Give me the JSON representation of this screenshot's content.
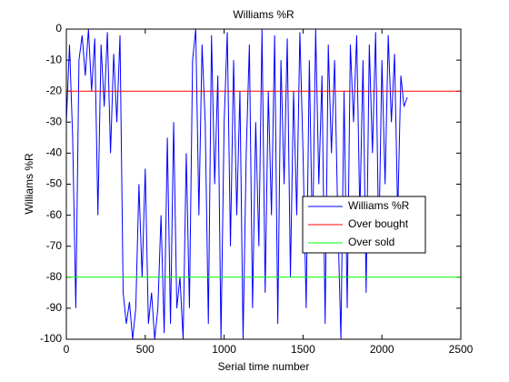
{
  "chart_data": {
    "type": "line",
    "title": "Williams %R",
    "xlabel": "Serial time number",
    "ylabel": "Williams %R",
    "xlim": [
      0,
      2500
    ],
    "xticks": [
      0,
      500,
      1000,
      1500,
      2000,
      2500
    ],
    "ylim": [
      -100,
      0
    ],
    "yticks": [
      -100,
      -90,
      -80,
      -70,
      -60,
      -50,
      -40,
      -30,
      -20,
      -10,
      0
    ],
    "legend": "east",
    "series": [
      {
        "name": "Williams %R",
        "color": "#0000ff",
        "x": [
          0,
          20,
          40,
          60,
          80,
          100,
          120,
          140,
          160,
          180,
          200,
          220,
          240,
          260,
          280,
          300,
          320,
          340,
          360,
          380,
          400,
          420,
          440,
          460,
          480,
          500,
          520,
          540,
          560,
          580,
          600,
          620,
          640,
          660,
          680,
          700,
          720,
          740,
          760,
          780,
          800,
          820,
          840,
          860,
          880,
          900,
          920,
          940,
          960,
          980,
          1000,
          1020,
          1040,
          1060,
          1080,
          1100,
          1120,
          1140,
          1160,
          1180,
          1200,
          1220,
          1240,
          1260,
          1280,
          1300,
          1320,
          1340,
          1360,
          1380,
          1400,
          1420,
          1440,
          1460,
          1480,
          1500,
          1520,
          1540,
          1560,
          1580,
          1600,
          1620,
          1640,
          1660,
          1680,
          1700,
          1720,
          1740,
          1760,
          1780,
          1800,
          1820,
          1840,
          1860,
          1880,
          1900,
          1920,
          1940,
          1960,
          1980,
          2000,
          2020,
          2040,
          2060,
          2080,
          2100,
          2120,
          2140,
          2160
        ],
        "values": [
          -30,
          -5,
          -35,
          -90,
          -10,
          -2,
          -15,
          0,
          -20,
          -3,
          -60,
          -5,
          -25,
          -1,
          -40,
          -8,
          -30,
          -2,
          -85,
          -95,
          -88,
          -100,
          -90,
          -50,
          -80,
          -45,
          -95,
          -85,
          -100,
          -90,
          -60,
          -98,
          -35,
          -95,
          -30,
          -90,
          -80,
          -100,
          -40,
          -90,
          -10,
          0,
          -60,
          -5,
          -30,
          -95,
          -2,
          -50,
          -15,
          -100,
          -30,
          -1,
          -70,
          -10,
          -60,
          -20,
          -100,
          -40,
          -5,
          -90,
          -30,
          -70,
          0,
          -85,
          -20,
          -60,
          -2,
          -95,
          -10,
          -50,
          -3,
          -80,
          -20,
          -60,
          -1,
          -40,
          -90,
          -10,
          -70,
          0,
          -50,
          -15,
          -95,
          -5,
          -40,
          -10,
          -60,
          -100,
          -20,
          -90,
          -5,
          -30,
          -2,
          -60,
          -10,
          -85,
          -5,
          -40,
          -1,
          -70,
          -10,
          -50,
          -2,
          -30,
          -8,
          -60,
          -15,
          -25,
          -22
        ]
      },
      {
        "name": "Over bought",
        "color": "#ff0000",
        "x": [
          0,
          2500
        ],
        "values": [
          -20,
          -20
        ]
      },
      {
        "name": "Over sold",
        "color": "#00ff00",
        "x": [
          0,
          2500
        ],
        "values": [
          -80,
          -80
        ]
      }
    ]
  }
}
